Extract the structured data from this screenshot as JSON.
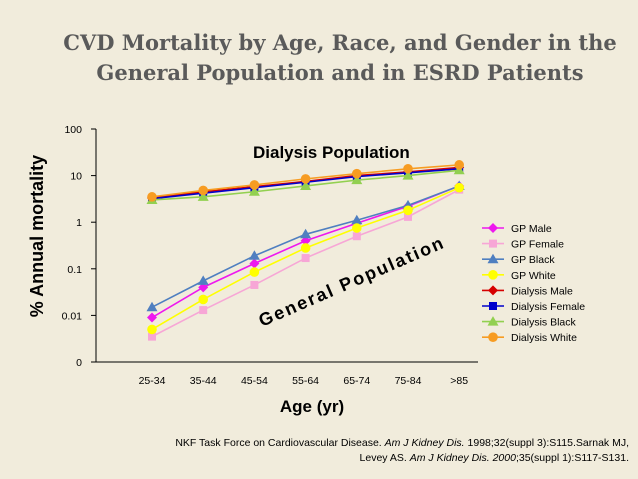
{
  "title": {
    "line1": "CVD Mortality by Age, Race, and Gender in the",
    "line2": "General Population and in ESRD Patients"
  },
  "citation": {
    "line1_pre": "NKF Task Force on Cardiovascular Disease. ",
    "line1_journal": "Am J Kidney Dis.",
    "line1_post": " 1998;32(suppl 3):S115.Sarnak MJ,",
    "line2_pre": "Levey AS. ",
    "line2_journal": "Am J Kidney Dis. 2000",
    "line2_post": ";35(suppl 1):S117-S131."
  },
  "colors": {
    "background": "#f1ecdc",
    "title": "#5a5a5a"
  },
  "chart_data": {
    "type": "line",
    "xlabel": "Age (yr)",
    "ylabel": "% Annual mortality",
    "yscale": "log",
    "ylim": [
      0.001,
      100
    ],
    "yticks": [
      {
        "value": 0.001,
        "label": "0"
      },
      {
        "value": 0.01,
        "label": "0.01"
      },
      {
        "value": 0.1,
        "label": "0.1"
      },
      {
        "value": 1,
        "label": "1"
      },
      {
        "value": 10,
        "label": "10"
      },
      {
        "value": 100,
        "label": "100"
      }
    ],
    "categories": [
      "25-34",
      "35-44",
      "45-54",
      "55-64",
      "65-74",
      "75-84",
      ">85"
    ],
    "grid": false,
    "legend_position": "right",
    "annotations": [
      {
        "text": "Dialysis Population",
        "style": "horizontal"
      },
      {
        "text": "General Population",
        "style": "rotated"
      }
    ],
    "series": [
      {
        "name": "GP Male",
        "color": "#ee18ee",
        "marker": "diamond",
        "values": [
          0.009,
          0.04,
          0.13,
          0.4,
          0.95,
          2.2,
          6
        ]
      },
      {
        "name": "GP Female",
        "color": "#f7a6d6",
        "marker": "square",
        "values": [
          0.0035,
          0.013,
          0.045,
          0.17,
          0.5,
          1.3,
          5
        ]
      },
      {
        "name": "GP Black",
        "color": "#4f7fc0",
        "marker": "triangle",
        "values": [
          0.015,
          0.055,
          0.19,
          0.55,
          1.1,
          2.3,
          6
        ]
      },
      {
        "name": "GP White",
        "color": "#ffff00",
        "marker": "circle",
        "values": [
          0.005,
          0.022,
          0.085,
          0.28,
          0.75,
          1.8,
          5.5
        ]
      },
      {
        "name": "Dialysis Male",
        "color": "#d60000",
        "marker": "diamond",
        "values": [
          3.3,
          4.5,
          5.8,
          7.5,
          10,
          12,
          15
        ]
      },
      {
        "name": "Dialysis Female",
        "color": "#0000cc",
        "marker": "square",
        "values": [
          3.2,
          4.2,
          5.5,
          7.2,
          9.5,
          11.5,
          14
        ]
      },
      {
        "name": "Dialysis Black",
        "color": "#92d050",
        "marker": "triangle",
        "values": [
          3.0,
          3.5,
          4.5,
          6.0,
          8.0,
          10,
          13
        ]
      },
      {
        "name": "Dialysis White",
        "color": "#f79c22",
        "marker": "circle",
        "values": [
          3.5,
          4.8,
          6.3,
          8.5,
          11,
          14,
          17
        ]
      }
    ]
  }
}
